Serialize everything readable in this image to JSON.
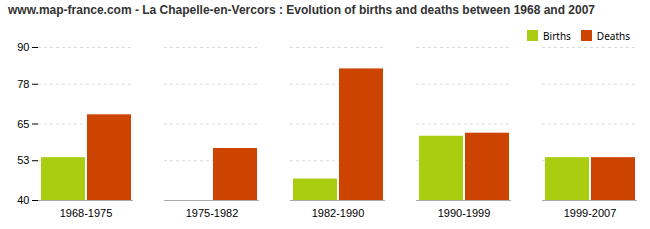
{
  "chart_data": {
    "type": "bar",
    "title": "www.map-france.com - La Chapelle-en-Vercors : Evolution of births and deaths between 1968 and 2007",
    "categories": [
      "1968-1975",
      "1975-1982",
      "1982-1990",
      "1990-1999",
      "1999-2007"
    ],
    "series": [
      {
        "name": "Births",
        "color": "#aacc11",
        "values": [
          54,
          40,
          47,
          61,
          54
        ]
      },
      {
        "name": "Deaths",
        "color": "#cc4400",
        "values": [
          68,
          57,
          83,
          62,
          54
        ]
      }
    ],
    "ylim": [
      40,
      90
    ],
    "yticks": [
      40,
      53,
      65,
      78,
      90
    ],
    "grid": true,
    "legend": "upper right"
  }
}
